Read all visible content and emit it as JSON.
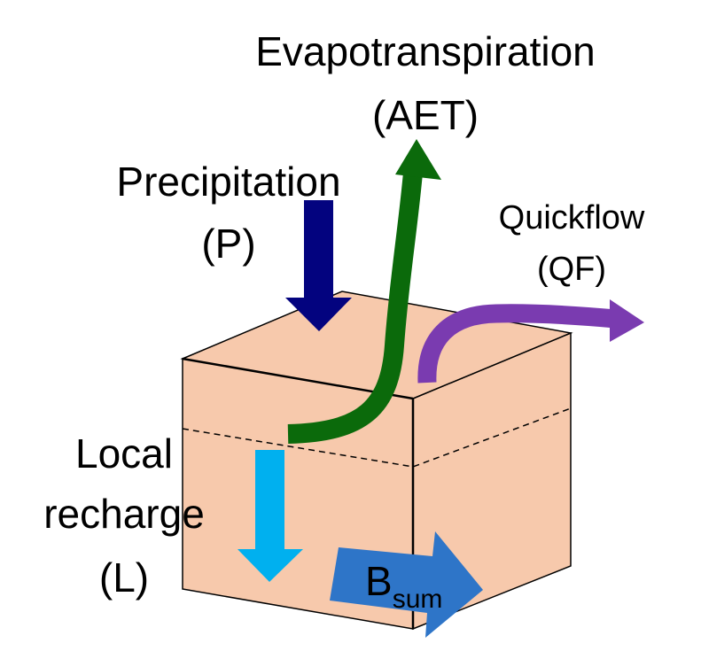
{
  "labels": {
    "evapotranspiration": "Evapotranspiration",
    "evapotranspiration_abbr": "(AET)",
    "precipitation": "Precipitation",
    "precipitation_abbr": "(P)",
    "quickflow": "Quickflow",
    "quickflow_abbr": "(QF)",
    "local_recharge_line1": "Local",
    "local_recharge_line2": "recharge",
    "local_recharge_abbr": "(L)",
    "baseflow_main": "B",
    "baseflow_subscript": "sum"
  },
  "colors": {
    "cube_fill": "#f7c9ac",
    "cube_stroke": "#000000",
    "precipitation_arrow": "#03037f",
    "evapotranspiration_arrow": "#0b6a0b",
    "quickflow_arrow": "#7a3bb0",
    "recharge_arrow": "#00b0ef",
    "baseflow_arrow": "#2e75c8"
  }
}
